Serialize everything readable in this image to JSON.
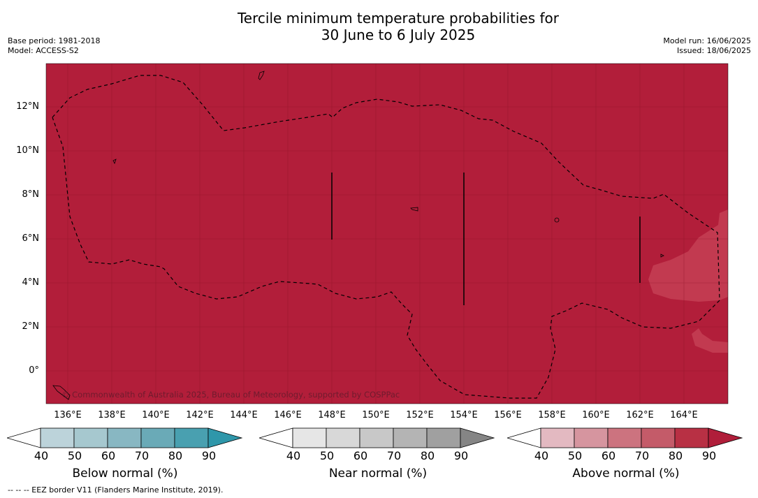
{
  "title": {
    "line1": "Tercile minimum temperature probabilities for",
    "line2": "30 June to 6 July 2025"
  },
  "meta_left": {
    "base_period": "Base period: 1981-2018",
    "model": "Model: ACCESS-S2"
  },
  "meta_right": {
    "model_run": "Model run: 16/06/2025",
    "issued": "Issued: 18/06/2025"
  },
  "copyright": "© Commonwealth of Australia 2025, Bureau of Meteorology, supported by COSPPac",
  "y_ticks": [
    "12°N",
    "10°N",
    "8°N",
    "6°N",
    "4°N",
    "2°N",
    "0°"
  ],
  "x_ticks": [
    "136°E",
    "138°E",
    "140°E",
    "142°E",
    "144°E",
    "146°E",
    "148°E",
    "150°E",
    "152°E",
    "154°E",
    "156°E",
    "158°E",
    "160°E",
    "162°E",
    "164°E"
  ],
  "colorbars": [
    {
      "label": "Below normal (%)",
      "ticks": [
        "40",
        "50",
        "60",
        "70",
        "80",
        "90"
      ],
      "colors": [
        "#ffffff",
        "#bcd3da",
        "#a6c8cf",
        "#88b7c2",
        "#6aaab7",
        "#49a0b0",
        "#2f97aa"
      ]
    },
    {
      "label": "Near normal (%)",
      "ticks": [
        "40",
        "50",
        "60",
        "70",
        "80",
        "90"
      ],
      "colors": [
        "#ffffff",
        "#e6e6e6",
        "#d8d8d8",
        "#c8c8c8",
        "#b4b4b4",
        "#a0a0a0",
        "#858585"
      ]
    },
    {
      "label": "Above normal (%)",
      "ticks": [
        "40",
        "50",
        "60",
        "70",
        "80",
        "90"
      ],
      "colors": [
        "#ffffff",
        "#e3b9c1",
        "#d6959f",
        "#cc737f",
        "#c45b69",
        "#b83044",
        "#b01e3a"
      ]
    }
  ],
  "map_colors": {
    "dominant": "#b21e3a",
    "lighter_region": "#c23a50"
  },
  "footer": "--  --  -- EEZ border V11 (Flanders Marine Institute, 2019)."
}
